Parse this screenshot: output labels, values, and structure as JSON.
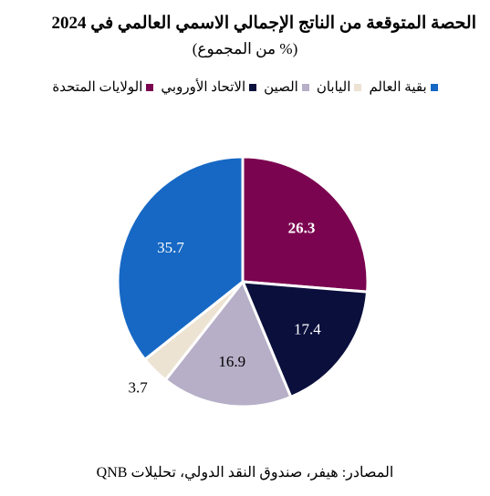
{
  "header": {
    "title": "الحصة المتوقعة من الناتج الإجمالي الاسمي العالمي في 2024",
    "subtitle": "(% من المجموع)"
  },
  "source": "المصادر: هيفر، صندوق النقد الدولي، تحليلات QNB",
  "chart_data": {
    "type": "pie",
    "title": "الحصة المتوقعة من الناتج الإجمالي الاسمي العالمي في 2024",
    "subtitle": "(% من المجموع)",
    "legend_position": "top",
    "categories": [
      "الولايات المتحدة",
      "الاتحاد الأوروبي",
      "الصين",
      "اليابان",
      "بقية العالم"
    ],
    "values": [
      26.3,
      17.4,
      16.9,
      3.7,
      35.7
    ],
    "labels": [
      "26.3",
      "17.4",
      "16.9",
      "3.7",
      "35.7"
    ],
    "colors": [
      "#7b0450",
      "#0a0f3c",
      "#b6afc7",
      "#ede3d3",
      "#1668c4"
    ],
    "label_colors": [
      "#ffffff",
      "#ffffff",
      "#000000",
      "#000000",
      "#ffffff"
    ],
    "label_bold": [
      true,
      false,
      false,
      false,
      false
    ]
  }
}
